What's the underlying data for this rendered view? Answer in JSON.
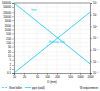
{
  "chart_data": {
    "type": "line",
    "log": true,
    "x": [
      10,
      2000
    ],
    "xlim": [
      10,
      2000
    ],
    "xticks": [
      10,
      20,
      50,
      100,
      200,
      500,
      1000,
      2000
    ],
    "x_label": "D (mm)",
    "ylim": [
      0.5,
      100000
    ],
    "yticks": [
      0.5,
      1,
      2,
      5,
      10,
      20,
      50,
      100,
      200,
      500,
      1000,
      2000,
      5000,
      10000,
      20000,
      50000,
      100000
    ],
    "y2lim": [
      0.0001,
      100
    ],
    "y2ticks": [
      {
        "value": 0.0001,
        "label": "10⁻⁴"
      },
      {
        "value": 0.001,
        "label": "10⁻³"
      },
      {
        "value": 0.01,
        "label": "10⁻²"
      },
      {
        "value": 0.1,
        "label": "10⁻¹"
      },
      {
        "value": 1,
        "label": "10⁰"
      },
      {
        "value": 10,
        "label": "10¹"
      },
      {
        "value": 100,
        "label": "10²"
      }
    ],
    "grid": true,
    "legend": "bottom",
    "series": [
      {
        "color": "#00ccff",
        "line_style": "solid",
        "values": [
          100000,
          2.5
        ]
      },
      {
        "color": "#00ccff",
        "line_style": "solid",
        "values": [
          0.5,
          20000
        ]
      },
      {
        "name": "Steel billet",
        "color": "#00ccff",
        "line_style": "dashed",
        "values": [
          null,
          null
        ]
      },
      {
        "name": "pipe (wall)",
        "color": "#00ccff",
        "line_style": "solid",
        "values": [
          null,
          null
        ]
      }
    ],
    "annotations": [
      {
        "text": "fmin",
        "x": 40,
        "y": 30000,
        "color": "#00ccff"
      },
      {
        "text": "t",
        "x": 100,
        "y": 60,
        "color": "#00ccff"
      },
      {
        "text": "Heating time",
        "x": 200,
        "y": 120,
        "color": "#00ccff"
      },
      {
        "text": "W requirement",
        "color": "black"
      }
    ]
  }
}
